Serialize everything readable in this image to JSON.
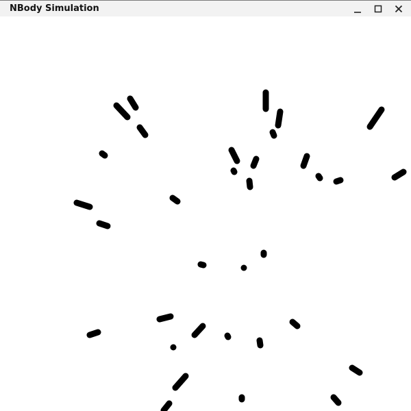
{
  "window": {
    "title": "NBody Simulation",
    "controls": {
      "minimize_icon": "minimize-icon",
      "maximize_icon": "maximize-icon",
      "close_icon": "close-icon"
    }
  },
  "simulation": {
    "particle_color": "#000000",
    "background_color": "#ffffff"
  }
}
